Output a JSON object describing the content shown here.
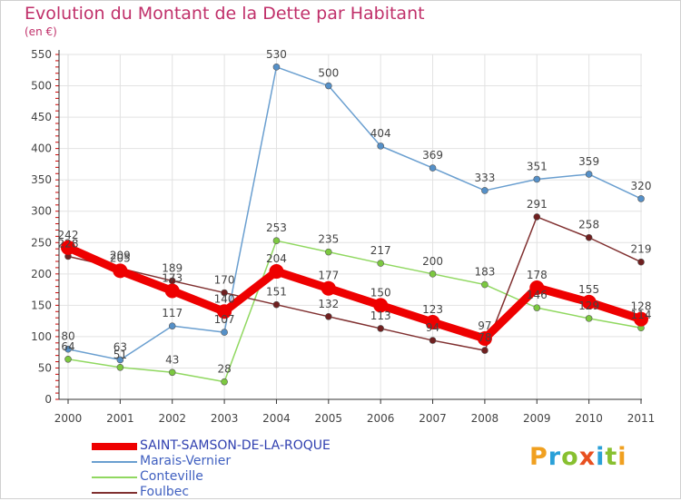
{
  "title": "Evolution du Montant de la Dette par Habitant",
  "unit": "(en €)",
  "logo": {
    "text": "Proxiti",
    "colors": [
      "#f0a020",
      "#2aa0d8",
      "#88c030",
      "#e85020",
      "#2aa0d8",
      "#88c030",
      "#f0a020"
    ]
  },
  "chart_data": {
    "type": "line",
    "x": [
      "2000",
      "2001",
      "2002",
      "2003",
      "2004",
      "2005",
      "2006",
      "2007",
      "2008",
      "2009",
      "2010",
      "2011"
    ],
    "ylim": [
      0,
      550
    ],
    "yticks": [
      0,
      50,
      100,
      150,
      200,
      250,
      300,
      350,
      400,
      450,
      500,
      550
    ],
    "grid": true,
    "legend_position": "bottom-left",
    "series": [
      {
        "name": "SAINT-SAMSON-DE-LA-ROQUE",
        "color": "#ee0000",
        "marker": "#ee0000",
        "thick": true,
        "values": [
          242,
          205,
          173,
          140,
          204,
          177,
          150,
          123,
          97,
          178,
          155,
          128
        ],
        "labels": [
          "242",
          "205",
          "173",
          "140",
          "204",
          "177",
          "150",
          "123",
          "97",
          "178",
          "155",
          "128"
        ]
      },
      {
        "name": "Marais-Vernier",
        "color": "#6a9fd0",
        "marker": "#5590c8",
        "values": [
          80,
          63,
          117,
          107,
          530,
          500,
          404,
          369,
          333,
          351,
          359,
          320
        ],
        "labels": [
          "80",
          "63",
          "117",
          "107",
          "530",
          "500",
          "404",
          "369",
          "333",
          "351",
          "359",
          "320"
        ]
      },
      {
        "name": "Conteville",
        "color": "#90d860",
        "marker": "#7cc840",
        "values": [
          64,
          51,
          43,
          28,
          253,
          235,
          217,
          200,
          183,
          146,
          129,
          114
        ],
        "labels": [
          "64",
          "51",
          "43",
          "28",
          "253",
          "235",
          "217",
          "200",
          "183",
          "146",
          "129",
          "114"
        ]
      },
      {
        "name": "Foulbec",
        "color": "#803030",
        "marker": "#702020",
        "values": [
          228,
          209,
          189,
          170,
          151,
          132,
          113,
          94,
          78,
          291,
          258,
          219
        ],
        "labels": [
          "228",
          "209",
          "189",
          "170",
          "151",
          "132",
          "113",
          "94",
          "78",
          "291",
          "258",
          "219"
        ]
      }
    ]
  }
}
